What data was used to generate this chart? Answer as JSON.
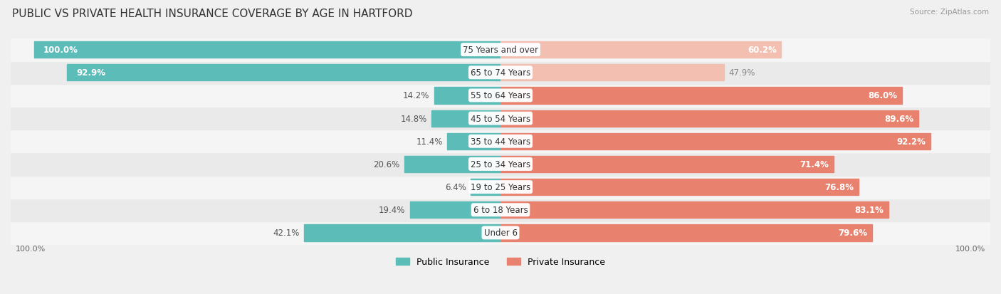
{
  "title": "PUBLIC VS PRIVATE HEALTH INSURANCE COVERAGE BY AGE IN HARTFORD",
  "source": "Source: ZipAtlas.com",
  "categories": [
    "Under 6",
    "6 to 18 Years",
    "19 to 25 Years",
    "25 to 34 Years",
    "35 to 44 Years",
    "45 to 54 Years",
    "55 to 64 Years",
    "65 to 74 Years",
    "75 Years and over"
  ],
  "public_values": [
    42.1,
    19.4,
    6.4,
    20.6,
    11.4,
    14.8,
    14.2,
    92.9,
    100.0
  ],
  "private_values": [
    79.6,
    83.1,
    76.8,
    71.4,
    92.2,
    89.6,
    86.0,
    47.9,
    60.2
  ],
  "public_color": "#5bbcb8",
  "private_color": "#e8826e",
  "public_color_light": "#aadad8",
  "private_color_light": "#f2bfb0",
  "bg_color": "#f0f0f0",
  "row_bg_color_1": "#f5f5f5",
  "row_bg_color_2": "#eaeaea",
  "max_value": 100.0,
  "title_fontsize": 11,
  "label_fontsize": 8.5,
  "value_fontsize": 8.5,
  "legend_fontsize": 9
}
